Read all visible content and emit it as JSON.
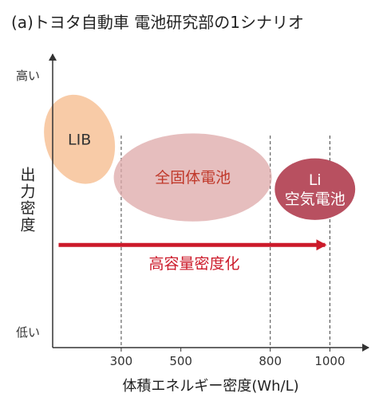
{
  "title": "(a)トヨタ自動車 電池研究部の1シナリオ",
  "chart_data": {
    "type": "scatter",
    "xlabel": "体積エネルギー密度(Wh/L)",
    "ylabel": "出力密度",
    "y_high_label": "高い",
    "y_low_label": "低い",
    "xlim": [
      70,
      1130
    ],
    "ylim": [
      0,
      10
    ],
    "x_ticks": [
      {
        "value": 300,
        "label": "300"
      },
      {
        "value": 500,
        "label": "500"
      },
      {
        "value": 800,
        "label": "800"
      },
      {
        "value": 1000,
        "label": "1000"
      }
    ],
    "reference_lines": [
      300,
      800,
      1000
    ],
    "regions": [
      {
        "label": "LIB",
        "x_center": 160,
        "x_half_width": 115,
        "y_center": 7.1,
        "y_half_height": 1.55,
        "rotation_deg": -18,
        "color": "#f5b98a",
        "text_color": "#333333",
        "opacity": 0.75
      },
      {
        "label": "全固体電池",
        "x_center": 540,
        "x_half_width": 265,
        "y_center": 5.8,
        "y_half_height": 1.5,
        "rotation_deg": 0,
        "color": "#dda8a8",
        "text_color": "#c0392b",
        "opacity": 0.75
      },
      {
        "label": "Li\n空気電池",
        "x_center": 950,
        "x_half_width": 135,
        "y_center": 5.4,
        "y_half_height": 1.05,
        "rotation_deg": 0,
        "color": "#b85060",
        "text_color": "#ffffff",
        "opacity": 1.0
      }
    ],
    "arrow": {
      "label": "高容量密度化",
      "x_start": 90,
      "x_end": 1000,
      "y": 3.5,
      "color": "#cc1a2a"
    }
  }
}
